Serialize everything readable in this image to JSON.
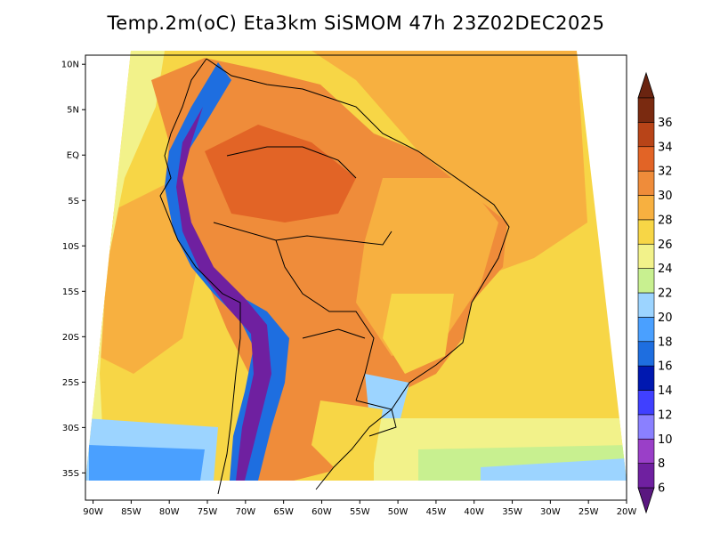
{
  "title": "Temp.2m(oC) Eta3km SiSMOM 47h 23Z02DEC2025",
  "map": {
    "variable": "2 m air temperature",
    "units": "oC",
    "model": "Eta3km SiSMOM",
    "lon_min": -91,
    "lon_max": -20,
    "lat_min": -38,
    "lat_max": 11
  },
  "lat_ticks": [
    {
      "lat": 10,
      "label": "10N"
    },
    {
      "lat": 5,
      "label": "5N"
    },
    {
      "lat": 0,
      "label": "EQ"
    },
    {
      "lat": -5,
      "label": "5S"
    },
    {
      "lat": -10,
      "label": "10S"
    },
    {
      "lat": -15,
      "label": "15S"
    },
    {
      "lat": -20,
      "label": "20S"
    },
    {
      "lat": -25,
      "label": "25S"
    },
    {
      "lat": -30,
      "label": "30S"
    },
    {
      "lat": -35,
      "label": "35S"
    }
  ],
  "lon_ticks": [
    {
      "lon": -90,
      "label": "90W"
    },
    {
      "lon": -85,
      "label": "85W"
    },
    {
      "lon": -80,
      "label": "80W"
    },
    {
      "lon": -75,
      "label": "75W"
    },
    {
      "lon": -70,
      "label": "70W"
    },
    {
      "lon": -65,
      "label": "65W"
    },
    {
      "lon": -60,
      "label": "60W"
    },
    {
      "lon": -55,
      "label": "55W"
    },
    {
      "lon": -50,
      "label": "50W"
    },
    {
      "lon": -45,
      "label": "45W"
    },
    {
      "lon": -40,
      "label": "40W"
    },
    {
      "lon": -35,
      "label": "35W"
    },
    {
      "lon": -30,
      "label": "30W"
    },
    {
      "lon": -25,
      "label": "25W"
    },
    {
      "lon": -20,
      "label": "20W"
    }
  ],
  "colorbar": {
    "levels": [
      6,
      8,
      10,
      12,
      14,
      16,
      18,
      20,
      22,
      24,
      26,
      28,
      30,
      32,
      34,
      36
    ],
    "labels": [
      "6",
      "8",
      "10",
      "12",
      "14",
      "16",
      "18",
      "20",
      "22",
      "24",
      "26",
      "28",
      "30",
      "32",
      "34",
      "36"
    ],
    "colors": [
      "#6f20a0",
      "#9a3fc8",
      "#8a80ff",
      "#4040ff",
      "#0018b0",
      "#1e6ee0",
      "#4aa0ff",
      "#9cd4ff",
      "#c8f090",
      "#f2f28a",
      "#f7d646",
      "#f7b040",
      "#ef8c3a",
      "#e26426",
      "#b84418",
      "#7a2a10"
    ],
    "low_color": "#5a1880",
    "high_color": "#6a2410"
  }
}
